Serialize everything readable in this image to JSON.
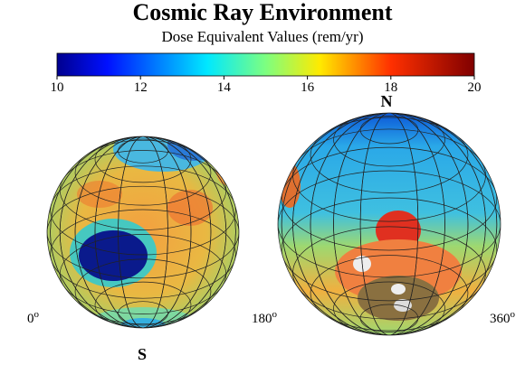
{
  "title": "Cosmic Ray Environment",
  "subtitle": "Dose Equivalent Values (rem/yr)",
  "colorbar": {
    "lim": [
      10,
      20
    ],
    "ticks": [
      10,
      12,
      14,
      16,
      18,
      20
    ]
  },
  "poles": {
    "north": "N",
    "south": "S"
  },
  "longitudes": [
    {
      "number": "0",
      "sup": "o"
    },
    {
      "number": "180",
      "sup": "o"
    },
    {
      "number": "360",
      "sup": "o"
    }
  ]
}
